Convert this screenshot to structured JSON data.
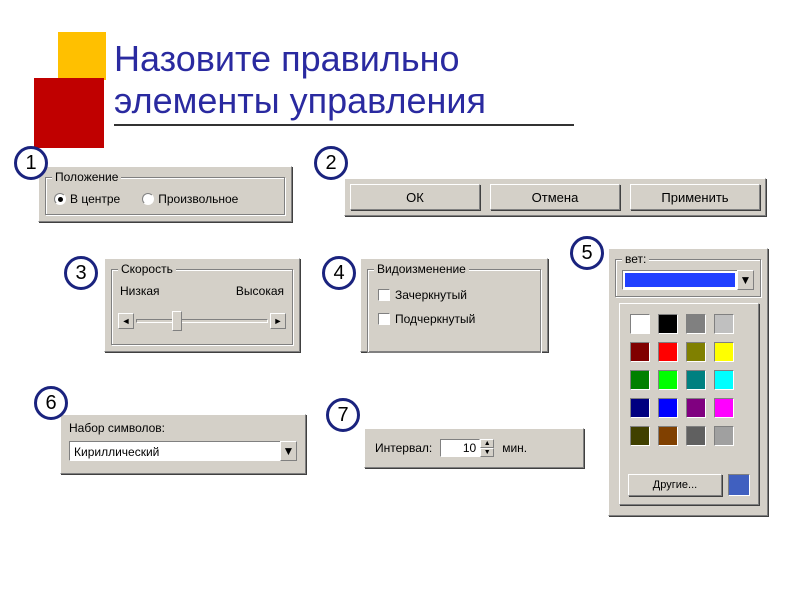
{
  "title": {
    "line1": "Назовите правильно",
    "line2": "элементы управления"
  },
  "decor": {
    "red": "#c00000",
    "yellow": "#ffc000",
    "title_color": "#2a2aa0",
    "underline": "#333333"
  },
  "badges": {
    "b1": "1",
    "b2": "2",
    "b3": "3",
    "b4": "4",
    "b5": "5",
    "b6": "6",
    "b7": "7"
  },
  "panel1": {
    "group_label": "Положение",
    "opt1": {
      "label": "В центре",
      "checked": true
    },
    "opt2": {
      "label": "Произвольное",
      "checked": false
    }
  },
  "panel2": {
    "ok": "ОК",
    "cancel": "Отмена",
    "apply": "Применить"
  },
  "panel3": {
    "group_label": "Скорость",
    "low": "Низкая",
    "high": "Высокая"
  },
  "panel4": {
    "group_label": "Видоизменение",
    "chk1": "Зачеркнутый",
    "chk2": "Подчеркнутый"
  },
  "panel5": {
    "group_label": "вет:",
    "other": "Другие...",
    "selected_color": "#2040ff",
    "swatch_color": "#4060c0",
    "colors": [
      "#ffffff",
      "#000000",
      "#808080",
      "#c0c0c0",
      "#800000",
      "#ff0000",
      "#808000",
      "#ffff00",
      "#008000",
      "#00ff00",
      "#008080",
      "#00ffff",
      "#000080",
      "#0000ff",
      "#800080",
      "#ff00ff",
      "#404000",
      "#804000",
      "#606060",
      "#a0a0a0"
    ]
  },
  "panel6": {
    "label": "Набор символов:",
    "value": "Кириллический"
  },
  "panel7": {
    "label": "Интервал:",
    "value": "10",
    "unit": "мин."
  },
  "win": {
    "face": "#d4d0c8",
    "shadow": "#808080",
    "darkshadow": "#404040",
    "highlight": "#ffffff",
    "badge_border": "#1a237e",
    "badge_bg": "#ffffff"
  }
}
